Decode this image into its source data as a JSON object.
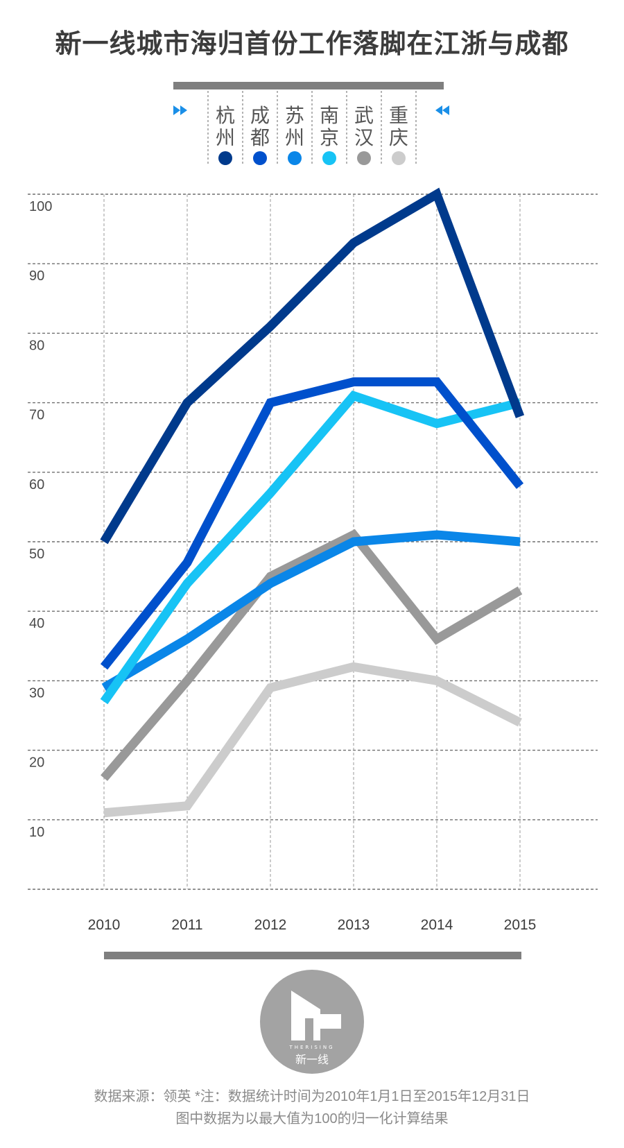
{
  "title": "新一线城市海归首份工作落脚在江浙与成都",
  "legend": [
    {
      "name": "杭州",
      "color": "#003a8c"
    },
    {
      "name": "成都",
      "color": "#0050cc"
    },
    {
      "name": "苏州",
      "color": "#0a86e8"
    },
    {
      "name": "南京",
      "color": "#17c3f5"
    },
    {
      "name": "武汉",
      "color": "#999999"
    },
    {
      "name": "重庆",
      "color": "#cccccc"
    }
  ],
  "logo": {
    "brand_en": "THERISING",
    "brand_cn": "新一线"
  },
  "footer": {
    "line1": "数据来源：领英  *注：数据统计时间为2010年1月1日至2015年12月31日",
    "line2": "图中数据为以最大值为100的归一化计算结果"
  },
  "chart_data": {
    "type": "line",
    "x": [
      "2010",
      "2011",
      "2012",
      "2013",
      "2014",
      "2015"
    ],
    "ylim": [
      0,
      100
    ],
    "yticks": [
      "10",
      "20",
      "30",
      "40",
      "50",
      "60",
      "70",
      "80",
      "90",
      "100"
    ],
    "grid": true,
    "legend_position": "top",
    "series": [
      {
        "name": "杭州",
        "color": "#003a8c",
        "values": [
          50,
          70,
          81,
          93,
          100,
          68
        ]
      },
      {
        "name": "成都",
        "color": "#0050cc",
        "values": [
          32,
          47,
          70,
          73,
          73,
          58
        ]
      },
      {
        "name": "苏州",
        "color": "#0a86e8",
        "values": [
          29,
          36,
          44,
          50,
          51,
          50
        ]
      },
      {
        "name": "南京",
        "color": "#17c3f5",
        "values": [
          27,
          44,
          57,
          71,
          67,
          70
        ]
      },
      {
        "name": "武汉",
        "color": "#999999",
        "values": [
          16,
          30,
          45,
          51,
          36,
          43
        ]
      },
      {
        "name": "重庆",
        "color": "#cccccc",
        "values": [
          11,
          12,
          29,
          32,
          30,
          24
        ]
      }
    ]
  }
}
